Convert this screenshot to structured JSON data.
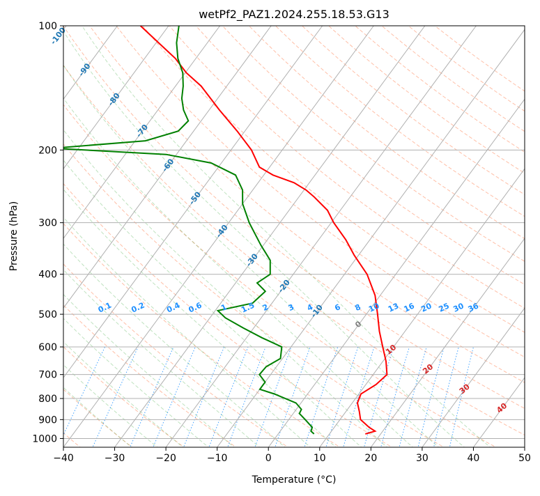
{
  "chart_data": {
    "type": "line",
    "title": "wetPf2_PAZ1.2024.255.18.53.G13",
    "xlabel": "Temperature (°C)",
    "ylabel": "Pressure (hPa)",
    "xlim": [
      -40,
      50
    ],
    "ylim": [
      1050,
      100
    ],
    "y_scale": "log",
    "skew_x": true,
    "grid": true,
    "x_ticks": [
      -40,
      -30,
      -20,
      -10,
      0,
      10,
      20,
      30,
      40,
      50
    ],
    "y_ticks": [
      100,
      200,
      300,
      400,
      500,
      600,
      700,
      800,
      900,
      1000
    ],
    "colors": {
      "temperature": "#ff0000",
      "dewpoint": "#008000",
      "dry_adiabat": "#ff7f50",
      "moist_adiabat": "#2ca02c",
      "mixing_ratio": "#1e90ff",
      "isotherm_label": "#1f77b4",
      "adiabat_label": "#d62728",
      "grid": "#b0b0b0"
    },
    "series": [
      {
        "key": "temperature",
        "points": [
          [
            975,
            17.0
          ],
          [
            960,
            18.5
          ],
          [
            940,
            16.8
          ],
          [
            900,
            14.0
          ],
          [
            860,
            12.6
          ],
          [
            820,
            11.0
          ],
          [
            780,
            10.4
          ],
          [
            740,
            12.0
          ],
          [
            700,
            12.7
          ],
          [
            650,
            10.6
          ],
          [
            600,
            7.9
          ],
          [
            550,
            5.0
          ],
          [
            500,
            2.2
          ],
          [
            450,
            -1.0
          ],
          [
            400,
            -5.6
          ],
          [
            360,
            -10.8
          ],
          [
            330,
            -14.7
          ],
          [
            300,
            -19.5
          ],
          [
            280,
            -22.5
          ],
          [
            260,
            -27.0
          ],
          [
            250,
            -29.6
          ],
          [
            240,
            -33.0
          ],
          [
            230,
            -38.2
          ],
          [
            220,
            -42.0
          ],
          [
            200,
            -46.0
          ],
          [
            180,
            -51.5
          ],
          [
            160,
            -58.0
          ],
          [
            140,
            -65.0
          ],
          [
            130,
            -69.8
          ],
          [
            120,
            -74.0
          ],
          [
            110,
            -79.5
          ],
          [
            100,
            -85.5
          ]
        ]
      },
      {
        "key": "dewpoint",
        "points": [
          [
            975,
            7.0
          ],
          [
            960,
            6.0
          ],
          [
            940,
            5.7
          ],
          [
            900,
            3.2
          ],
          [
            870,
            1.2
          ],
          [
            850,
            1.0
          ],
          [
            820,
            -1.0
          ],
          [
            780,
            -6.5
          ],
          [
            760,
            -10.0
          ],
          [
            730,
            -10.0
          ],
          [
            700,
            -12.2
          ],
          [
            670,
            -12.0
          ],
          [
            640,
            -10.4
          ],
          [
            600,
            -11.8
          ],
          [
            570,
            -17.0
          ],
          [
            540,
            -22.0
          ],
          [
            510,
            -27.0
          ],
          [
            490,
            -29.5
          ],
          [
            470,
            -23.8
          ],
          [
            440,
            -23.0
          ],
          [
            420,
            -25.8
          ],
          [
            400,
            -24.5
          ],
          [
            370,
            -26.5
          ],
          [
            340,
            -30.5
          ],
          [
            300,
            -36.0
          ],
          [
            270,
            -40.0
          ],
          [
            250,
            -42.0
          ],
          [
            230,
            -45.5
          ],
          [
            215,
            -52.0
          ],
          [
            205,
            -62.0
          ],
          [
            198,
            -85.0
          ],
          [
            190,
            -68.0
          ],
          [
            180,
            -63.0
          ],
          [
            170,
            -62.5
          ],
          [
            160,
            -65.0
          ],
          [
            150,
            -67.0
          ],
          [
            140,
            -68.5
          ],
          [
            130,
            -70.5
          ],
          [
            120,
            -73.5
          ],
          [
            110,
            -76.0
          ],
          [
            100,
            -78.0
          ]
        ]
      }
    ],
    "isotherm_labels": [
      "-100",
      "-90",
      "-80",
      "-70",
      "-60",
      "-50",
      "-40",
      "-30",
      "-20",
      "-10"
    ],
    "mixing_ratio_labels": [
      "0.1",
      "0.2",
      "0.4",
      "0.6",
      "1",
      "1.5",
      "2",
      "3",
      "4",
      "6",
      "8",
      "10",
      "13",
      "16",
      "20",
      "25",
      "30",
      "36"
    ],
    "adiabat_labels": [
      "0",
      "10",
      "20",
      "30",
      "40"
    ]
  }
}
